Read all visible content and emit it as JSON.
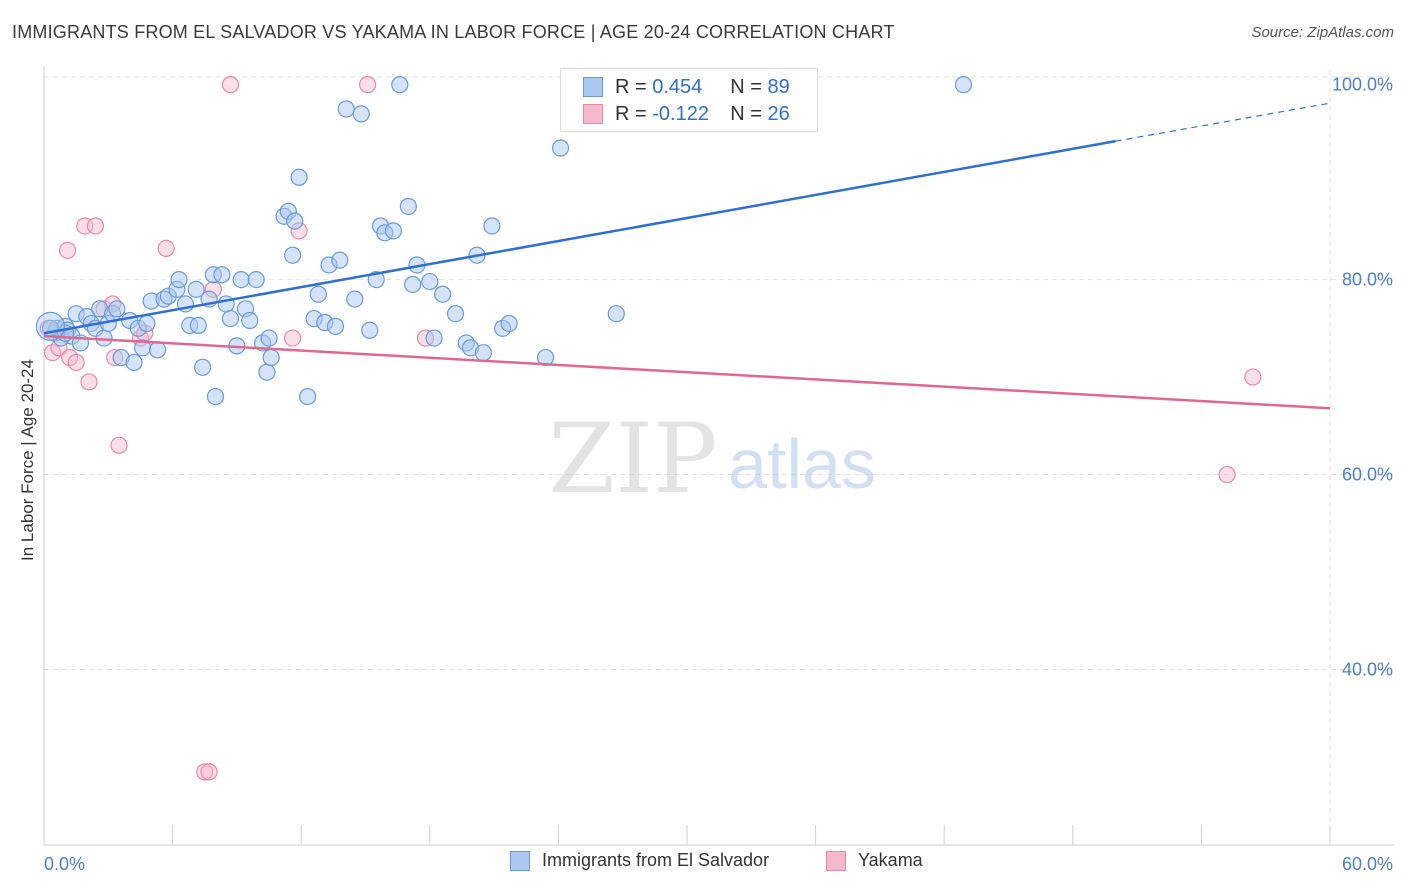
{
  "title": "IMMIGRANTS FROM EL SALVADOR VS YAKAMA IN LABOR FORCE | AGE 20-24 CORRELATION CHART",
  "source": "Source: ZipAtlas.com",
  "watermark": {
    "zip": "ZIP",
    "atlas": "atlas"
  },
  "legend": {
    "series1": {
      "r_label": "R = ",
      "r_value": "0.454",
      "n_label": "N = ",
      "n_value": "89"
    },
    "series2": {
      "r_label": "R = ",
      "r_value": "-0.122",
      "n_label": "N = ",
      "n_value": "26"
    }
  },
  "bottom_legend": {
    "series1": "Immigrants from El Salvador",
    "series2": "Yakama"
  },
  "colors": {
    "blue_fill": "#aac8f0",
    "blue_stroke": "#6a9ad8",
    "blue_line": "#2e6fd0",
    "pink_fill": "#f6b8cb",
    "pink_stroke": "#e888a8",
    "pink_line": "#e06890",
    "tick_label": "#4a7fd0",
    "grid": "#e2e2e2"
  },
  "chart_data": {
    "type": "scatter",
    "title": "IMMIGRANTS FROM EL SALVADOR VS YAKAMA IN LABOR FORCE | AGE 20-24 CORRELATION CHART",
    "xlabel": "",
    "ylabel": "In Labor Force | Age 20-24",
    "xlim": [
      0,
      60
    ],
    "ylim": [
      22,
      101.5
    ],
    "x_tick_labels": [
      {
        "value": 0,
        "label": "0.0%"
      },
      {
        "value": 60,
        "label": "60.0%"
      }
    ],
    "y_tick_labels": [
      {
        "value": 40,
        "label": "40.0%"
      },
      {
        "value": 60,
        "label": "60.0%"
      },
      {
        "value": 80,
        "label": "80.0%"
      },
      {
        "value": 100,
        "label": "100.0%"
      }
    ],
    "series": [
      {
        "name": "Immigrants from El Salvador",
        "R": 0.454,
        "N": 89,
        "trend": {
          "x": [
            0,
            50
          ],
          "y": [
            74.5,
            94.2
          ],
          "dashed_to": {
            "x": 60,
            "y": 98.1
          }
        },
        "points": [
          [
            0.5,
            74.5
          ],
          [
            0.6,
            75.0
          ],
          [
            0.8,
            74.0
          ],
          [
            1.0,
            75.2
          ],
          [
            1.1,
            74.8
          ],
          [
            1.3,
            74.2
          ],
          [
            1.5,
            76.5
          ],
          [
            1.7,
            73.5
          ],
          [
            2.0,
            76.2
          ],
          [
            2.2,
            75.5
          ],
          [
            2.4,
            75.0
          ],
          [
            2.6,
            77.0
          ],
          [
            2.8,
            74.0
          ],
          [
            3.0,
            75.5
          ],
          [
            3.2,
            76.5
          ],
          [
            3.4,
            77.0
          ],
          [
            3.6,
            72.0
          ],
          [
            4.0,
            75.8
          ],
          [
            4.2,
            71.5
          ],
          [
            4.4,
            75.0
          ],
          [
            4.6,
            73.0
          ],
          [
            4.8,
            75.5
          ],
          [
            5.0,
            77.8
          ],
          [
            5.3,
            72.8
          ],
          [
            5.6,
            78.0
          ],
          [
            5.8,
            78.3
          ],
          [
            6.2,
            79.0
          ],
          [
            6.3,
            80.0
          ],
          [
            6.6,
            77.5
          ],
          [
            6.8,
            75.3
          ],
          [
            7.1,
            79.0
          ],
          [
            7.2,
            75.3
          ],
          [
            7.4,
            71.0
          ],
          [
            7.7,
            78.0
          ],
          [
            8.0,
            68.0
          ],
          [
            7.9,
            80.5
          ],
          [
            8.3,
            80.5
          ],
          [
            8.5,
            77.5
          ],
          [
            8.7,
            76.0
          ],
          [
            9.0,
            73.2
          ],
          [
            9.2,
            80.0
          ],
          [
            9.4,
            77.0
          ],
          [
            9.6,
            75.8
          ],
          [
            9.9,
            80.0
          ],
          [
            10.2,
            73.5
          ],
          [
            10.4,
            70.5
          ],
          [
            10.5,
            74.0
          ],
          [
            10.6,
            72.0
          ],
          [
            11.2,
            86.5
          ],
          [
            11.4,
            87.0
          ],
          [
            11.6,
            82.5
          ],
          [
            11.7,
            86.0
          ],
          [
            11.9,
            90.5
          ],
          [
            12.3,
            68.0
          ],
          [
            12.6,
            76.0
          ],
          [
            12.8,
            78.5
          ],
          [
            13.1,
            75.6
          ],
          [
            13.3,
            81.5
          ],
          [
            13.6,
            75.2
          ],
          [
            13.8,
            82.0
          ],
          [
            14.1,
            97.5
          ],
          [
            14.5,
            78.0
          ],
          [
            14.8,
            97.0
          ],
          [
            15.2,
            74.8
          ],
          [
            15.5,
            80.0
          ],
          [
            15.7,
            85.5
          ],
          [
            15.9,
            84.8
          ],
          [
            16.3,
            85.0
          ],
          [
            16.6,
            100.0
          ],
          [
            17.0,
            87.5
          ],
          [
            17.2,
            79.5
          ],
          [
            17.4,
            81.5
          ],
          [
            18.0,
            79.8
          ],
          [
            18.2,
            74.0
          ],
          [
            18.6,
            78.5
          ],
          [
            19.2,
            76.5
          ],
          [
            19.7,
            73.5
          ],
          [
            19.9,
            73.0
          ],
          [
            20.2,
            82.5
          ],
          [
            20.5,
            72.5
          ],
          [
            20.9,
            85.5
          ],
          [
            21.4,
            75.0
          ],
          [
            21.7,
            75.5
          ],
          [
            23.4,
            72.0
          ],
          [
            24.1,
            93.5
          ],
          [
            26.7,
            76.5
          ],
          [
            42.9,
            100.0
          ],
          [
            0.3,
            75.0
          ],
          [
            1.0,
            74.5
          ]
        ]
      },
      {
        "name": "Yakama",
        "R": -0.122,
        "N": 26,
        "trend": {
          "x": [
            0,
            60
          ],
          "y": [
            74.2,
            66.8
          ]
        },
        "points": [
          [
            0.2,
            75.0
          ],
          [
            0.4,
            72.5
          ],
          [
            0.7,
            73.0
          ],
          [
            1.1,
            83.0
          ],
          [
            1.2,
            72.0
          ],
          [
            1.5,
            71.5
          ],
          [
            1.9,
            85.5
          ],
          [
            2.1,
            69.5
          ],
          [
            2.4,
            85.5
          ],
          [
            2.8,
            77.0
          ],
          [
            3.2,
            77.5
          ],
          [
            3.3,
            72.0
          ],
          [
            3.5,
            63.0
          ],
          [
            4.5,
            74.0
          ],
          [
            4.7,
            74.5
          ],
          [
            5.7,
            83.2
          ],
          [
            7.5,
            29.5
          ],
          [
            7.7,
            29.5
          ],
          [
            7.9,
            79.0
          ],
          [
            8.7,
            100.0
          ],
          [
            11.6,
            74.0
          ],
          [
            11.9,
            85.0
          ],
          [
            15.1,
            100.0
          ],
          [
            17.8,
            74.0
          ],
          [
            55.2,
            60.0
          ],
          [
            56.4,
            70.0
          ]
        ]
      }
    ]
  }
}
